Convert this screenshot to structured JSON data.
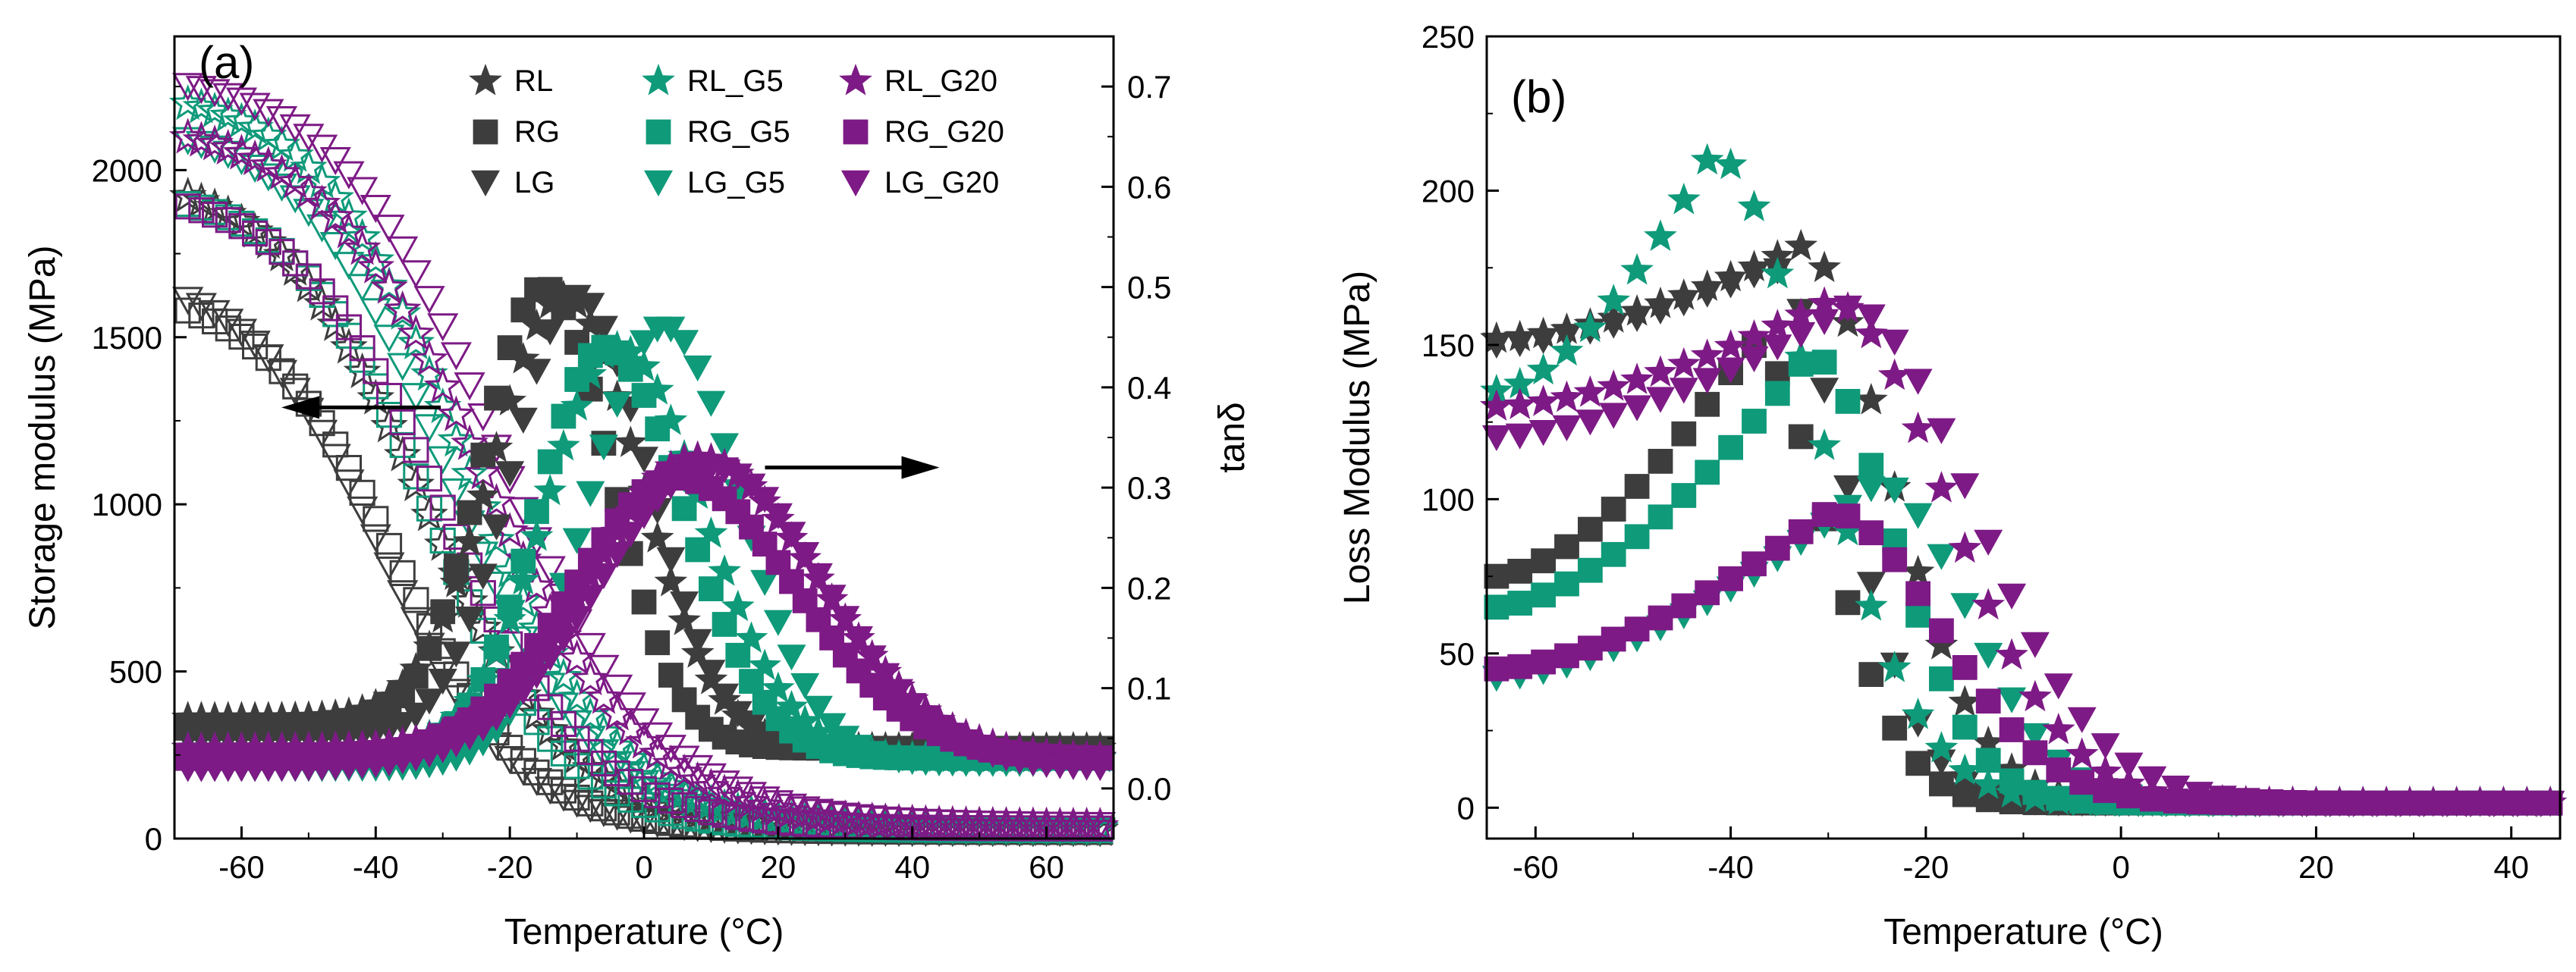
{
  "colors": {
    "RL": "#3d3d3d",
    "RG": "#3d3d3d",
    "LG": "#3d3d3d",
    "RL_G5": "#0f9a7a",
    "RG_G5": "#0f9a7a",
    "LG_G5": "#0f9a7a",
    "RL_G20": "#7d1a85",
    "RG_G20": "#7d1a85",
    "LG_G20": "#7d1a85"
  },
  "legend": [
    {
      "key": "RL",
      "label": "RL",
      "marker": "star"
    },
    {
      "key": "RG",
      "label": "RG",
      "marker": "square"
    },
    {
      "key": "LG",
      "label": "LG",
      "marker": "triangle-down"
    },
    {
      "key": "RL_G5",
      "label": "RL_G5",
      "marker": "star"
    },
    {
      "key": "RG_G5",
      "label": "RG_G5",
      "marker": "square"
    },
    {
      "key": "LG_G5",
      "label": "LG_G5",
      "marker": "triangle-down"
    },
    {
      "key": "RL_G20",
      "label": "RL_G20",
      "marker": "star"
    },
    {
      "key": "RG_G20",
      "label": "RG_G20",
      "marker": "square"
    },
    {
      "key": "LG_G20",
      "label": "LG_G20",
      "marker": "triangle-down"
    }
  ],
  "chart_data": [
    {
      "panel": "(a)",
      "type": "scatter",
      "xlabel": "Temperature (°C)",
      "ylabel": "Storage modulus (MPa)",
      "y2label": "tanδ",
      "xlim": [
        -70,
        70
      ],
      "ylim": [
        0,
        2400
      ],
      "y2lim": [
        -0.05,
        0.75
      ],
      "xticks": [
        -60,
        -40,
        -20,
        0,
        20,
        40,
        60
      ],
      "yticks": [
        0,
        500,
        1000,
        1500,
        2000
      ],
      "y2ticks": [
        0.0,
        0.1,
        0.2,
        0.3,
        0.4,
        0.5,
        0.6,
        0.7
      ],
      "arrows": [
        {
          "direction": "left",
          "axis": "Storage modulus",
          "at_x": -45,
          "at_y": 1290
        },
        {
          "direction": "right",
          "axis": "tanδ",
          "at_x": 35,
          "at_y": 0.32
        }
      ],
      "storage_series": [
        {
          "name": "RL",
          "marker": "star",
          "filled": false,
          "T0": -33,
          "w": 11,
          "Ehigh": 2000,
          "Elow": 25
        },
        {
          "name": "RG",
          "marker": "square",
          "filled": false,
          "T0": -37,
          "w": 10,
          "Ehigh": 1650,
          "Elow": 20
        },
        {
          "name": "LG",
          "marker": "triangle-down",
          "filled": false,
          "T0": -39,
          "w": 10,
          "Ehigh": 1700,
          "Elow": 20
        },
        {
          "name": "RL_G5",
          "marker": "star",
          "filled": false,
          "T0": -27,
          "w": 11,
          "Ehigh": 2250,
          "Elow": 30
        },
        {
          "name": "RG_G5",
          "marker": "square",
          "filled": false,
          "T0": -32,
          "w": 10,
          "Ehigh": 1950,
          "Elow": 25
        },
        {
          "name": "LG_G5",
          "marker": "triangle-down",
          "filled": false,
          "T0": -29,
          "w": 11,
          "Ehigh": 2150,
          "Elow": 25
        },
        {
          "name": "RL_G20",
          "marker": "star",
          "filled": false,
          "T0": -24,
          "w": 12,
          "Ehigh": 2150,
          "Elow": 35
        },
        {
          "name": "RG_G20",
          "marker": "square",
          "filled": false,
          "T0": -30,
          "w": 11,
          "Ehigh": 1950,
          "Elow": 30
        },
        {
          "name": "LG_G20",
          "marker": "triangle-down",
          "filled": false,
          "T0": -22,
          "w": 12,
          "Ehigh": 2300,
          "Elow": 40
        }
      ],
      "tan_series": [
        {
          "name": "RL",
          "marker": "star",
          "filled": true,
          "peakT": -12,
          "peak": 0.49,
          "base": 0.04,
          "low": 0.07,
          "wl": 15,
          "wr": 16
        },
        {
          "name": "RG",
          "marker": "square",
          "filled": true,
          "peakT": -15,
          "peak": 0.5,
          "base": 0.04,
          "low": 0.06,
          "wl": 13,
          "wr": 14
        },
        {
          "name": "LG",
          "marker": "triangle-down",
          "filled": true,
          "peakT": -10,
          "peak": 0.49,
          "base": 0.04,
          "low": 0.05,
          "wl": 14,
          "wr": 15
        },
        {
          "name": "RL_G5",
          "marker": "star",
          "filled": true,
          "peakT": -4,
          "peak": 0.44,
          "base": 0.03,
          "low": 0.04,
          "wl": 15,
          "wr": 18
        },
        {
          "name": "RG_G5",
          "marker": "square",
          "filled": true,
          "peakT": -6,
          "peak": 0.44,
          "base": 0.03,
          "low": 0.03,
          "wl": 14,
          "wr": 17
        },
        {
          "name": "LG_G5",
          "marker": "triangle-down",
          "filled": true,
          "peakT": 3,
          "peak": 0.46,
          "base": 0.025,
          "low": 0.02,
          "wl": 16,
          "wr": 16
        },
        {
          "name": "RL_G20",
          "marker": "star",
          "filled": true,
          "peakT": 8,
          "peak": 0.33,
          "base": 0.03,
          "low": 0.04,
          "wl": 22,
          "wr": 25
        },
        {
          "name": "RG_G20",
          "marker": "square",
          "filled": true,
          "peakT": 5,
          "peak": 0.31,
          "base": 0.03,
          "low": 0.03,
          "wl": 22,
          "wr": 25
        },
        {
          "name": "LG_G20",
          "marker": "triangle-down",
          "filled": true,
          "peakT": 10,
          "peak": 0.32,
          "base": 0.02,
          "low": 0.02,
          "wl": 24,
          "wr": 24
        }
      ]
    },
    {
      "panel": "(b)",
      "type": "scatter",
      "xlabel": "Temperature (°C)",
      "ylabel": "Loss Modulus (MPa)",
      "xlim": [
        -65,
        45
      ],
      "ylim": [
        -10,
        250
      ],
      "xticks": [
        -60,
        -40,
        -20,
        0,
        20,
        40
      ],
      "yticks": [
        0,
        50,
        100,
        150,
        200,
        250
      ],
      "series": [
        {
          "name": "RL",
          "marker": "star",
          "start": 152,
          "peakT": -33,
          "peak": 182,
          "wr": 13
        },
        {
          "name": "RG",
          "marker": "square",
          "start": 75,
          "peakT": -38,
          "peak": 150,
          "wr": 11
        },
        {
          "name": "LG",
          "marker": "triangle-down",
          "start": 150,
          "peakT": -36,
          "peak": 175,
          "wr": 11
        },
        {
          "name": "RL_G5",
          "marker": "star",
          "start": 135,
          "peakT": -42,
          "peak": 212,
          "wr": 15
        },
        {
          "name": "RG_G5",
          "marker": "square",
          "start": 65,
          "peakT": -32,
          "peak": 147,
          "wr": 12
        },
        {
          "name": "LG_G5",
          "marker": "triangle-down",
          "start": 42,
          "peakT": -25,
          "peak": 105,
          "wr": 13
        },
        {
          "name": "RL_G20",
          "marker": "star",
          "start": 130,
          "peakT": -30,
          "peak": 164,
          "wr": 17
        },
        {
          "name": "RG_G20",
          "marker": "square",
          "start": 45,
          "peakT": -30,
          "peak": 96,
          "wr": 16
        },
        {
          "name": "LG_G20",
          "marker": "triangle-down",
          "start": 120,
          "peakT": -28,
          "peak": 162,
          "wr": 18
        }
      ]
    }
  ]
}
